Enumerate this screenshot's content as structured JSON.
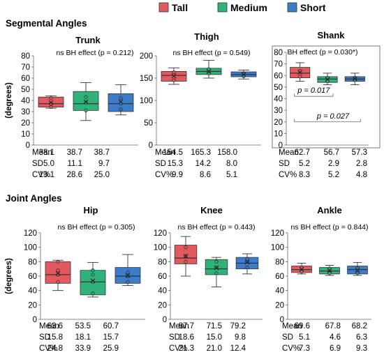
{
  "legend": [
    {
      "label": "Tall",
      "color": "#e05a5f"
    },
    {
      "label": "Medium",
      "color": "#2fb37a"
    },
    {
      "label": "Short",
      "color": "#3d7cc9"
    }
  ],
  "sections": {
    "segmental": "Segmental Angles",
    "joint": "Joint Angles"
  },
  "ylabel": "(degrees)",
  "stat_labels": [
    "Mean",
    "SD",
    "CV%"
  ],
  "chart_data": [
    {
      "type": "box",
      "title": "Trunk",
      "annotation": "ns BH effect (p = 0.212)",
      "ylim": [
        0,
        80
      ],
      "yticks": [
        0,
        10,
        20,
        30,
        40,
        50,
        60,
        70,
        80
      ],
      "series": [
        {
          "name": "Tall",
          "min": 33,
          "q1": 34,
          "median": 37,
          "q3": 43,
          "max": 44,
          "mean": 38.1,
          "points": [
            34,
            37,
            42
          ]
        },
        {
          "name": "Medium",
          "min": 22,
          "q1": 31,
          "median": 37,
          "q3": 48,
          "max": 56,
          "mean": 38.7,
          "points": [
            31,
            38,
            43
          ]
        },
        {
          "name": "Short",
          "min": 27,
          "q1": 30,
          "median": 37,
          "q3": 46,
          "max": 54,
          "mean": 38.7,
          "points": [
            32,
            37,
            42
          ]
        }
      ],
      "stats": {
        "Mean": [
          "38.1",
          "38.7",
          "38.7"
        ],
        "SD": [
          "5.0",
          "11.1",
          "9.7"
        ],
        "CV%": [
          "13.1",
          "28.6",
          "25.0"
        ]
      }
    },
    {
      "type": "box",
      "title": "Thigh",
      "annotation": "ns BH effect (p = 0.549)",
      "ylim": [
        0,
        200
      ],
      "yticks": [
        0,
        50,
        100,
        150,
        200
      ],
      "series": [
        {
          "name": "Tall",
          "min": 136,
          "q1": 143,
          "median": 156,
          "q3": 165,
          "max": 173,
          "mean": 154.5,
          "points": [
            145,
            158,
            163
          ]
        },
        {
          "name": "Medium",
          "min": 150,
          "q1": 158,
          "median": 165,
          "q3": 172,
          "max": 190,
          "mean": 165.3,
          "points": [
            160,
            165,
            170
          ]
        },
        {
          "name": "Short",
          "min": 148,
          "q1": 153,
          "median": 158,
          "q3": 164,
          "max": 168,
          "mean": 158.0,
          "points": [
            154,
            160
          ]
        }
      ],
      "stats": {
        "Mean": [
          "154.5",
          "165.3",
          "158.0"
        ],
        "SD": [
          "15.3",
          "14.2",
          "8.0"
        ],
        "CV%": [
          "9.9",
          "8.6",
          "5.1"
        ]
      }
    },
    {
      "type": "box",
      "title": "Shank",
      "annotation": "BH effect (p = 0.030*)",
      "boxed": true,
      "ylim": [
        0,
        80
      ],
      "yticks": [
        0,
        10,
        20,
        30,
        40,
        50,
        60,
        70,
        80
      ],
      "series": [
        {
          "name": "Tall",
          "min": 55,
          "q1": 58,
          "median": 62,
          "q3": 67,
          "max": 71,
          "mean": 62.7,
          "points": [
            59,
            64
          ]
        },
        {
          "name": "Medium",
          "min": 52,
          "q1": 54,
          "median": 57,
          "q3": 59,
          "max": 62,
          "mean": 56.7,
          "points": [
            55,
            58
          ]
        },
        {
          "name": "Short",
          "min": 52,
          "q1": 55,
          "median": 57,
          "q3": 59,
          "max": 62,
          "mean": 57.3,
          "points": [
            56,
            58
          ]
        }
      ],
      "brackets": [
        {
          "from": 0,
          "to": 1,
          "label": "p = 0.017",
          "level": 42
        },
        {
          "from": 0,
          "to": 2,
          "label": "p = 0.027",
          "level": 20
        }
      ],
      "stats": {
        "Mean": [
          "62.7",
          "56.7",
          "57.3"
        ],
        "SD": [
          "5.2",
          "2.9",
          "2.8"
        ],
        "CV%": [
          "8.3",
          "5.2",
          "4.8"
        ]
      }
    },
    {
      "type": "box",
      "title": "Hip",
      "annotation": "ns BH effect (p = 0.305)",
      "ylim": [
        0,
        120
      ],
      "yticks": [
        0,
        20,
        40,
        60,
        80,
        100,
        120
      ],
      "series": [
        {
          "name": "Tall",
          "min": 40,
          "q1": 50,
          "median": 62,
          "q3": 80,
          "max": 82,
          "mean": 63.6,
          "points": [
            52,
            62,
            68,
            80
          ]
        },
        {
          "name": "Medium",
          "min": 31,
          "q1": 34,
          "median": 52,
          "q3": 68,
          "max": 79,
          "mean": 53.5,
          "points": [
            36,
            52,
            62,
            68
          ]
        },
        {
          "name": "Short",
          "min": 47,
          "q1": 50,
          "median": 60,
          "q3": 72,
          "max": 90,
          "mean": 60.7,
          "points": [
            52,
            60,
            65
          ]
        }
      ],
      "stats": {
        "Mean": [
          "63.6",
          "53.5",
          "60.7"
        ],
        "SD": [
          "15.8",
          "18.1",
          "15.7"
        ],
        "CV%": [
          "24.8",
          "33.9",
          "25.9"
        ]
      }
    },
    {
      "type": "box",
      "title": "Knee",
      "annotation": "ns BH effect (p = 0.443)",
      "ylim": [
        0,
        120
      ],
      "yticks": [
        0,
        20,
        40,
        60,
        80,
        100,
        120
      ],
      "series": [
        {
          "name": "Tall",
          "min": 60,
          "q1": 77,
          "median": 85,
          "q3": 103,
          "max": 115,
          "mean": 87.7,
          "points": [
            80,
            88,
            100
          ]
        },
        {
          "name": "Medium",
          "min": 45,
          "q1": 62,
          "median": 70,
          "q3": 83,
          "max": 86,
          "mean": 71.5,
          "points": [
            64,
            72,
            80
          ]
        },
        {
          "name": "Short",
          "min": 63,
          "q1": 70,
          "median": 78,
          "q3": 86,
          "max": 91,
          "mean": 79.2,
          "points": [
            72,
            80,
            84
          ]
        }
      ],
      "stats": {
        "Mean": [
          "87.7",
          "71.5",
          "79.2"
        ],
        "SD": [
          "18.6",
          "15.0",
          "9.8"
        ],
        "CV%": [
          "21.3",
          "21.0",
          "12.4"
        ]
      }
    },
    {
      "type": "box",
      "title": "Ankle",
      "annotation": "ns BH effect (p = 0.844)",
      "ylim": [
        0,
        120
      ],
      "yticks": [
        0,
        20,
        40,
        60,
        80,
        100,
        120
      ],
      "series": [
        {
          "name": "Tall",
          "min": 63,
          "q1": 65,
          "median": 69,
          "q3": 74,
          "max": 78,
          "mean": 69.6,
          "points": [
            66,
            72
          ]
        },
        {
          "name": "Medium",
          "min": 61,
          "q1": 63,
          "median": 67,
          "q3": 72,
          "max": 75,
          "mean": 67.8,
          "points": [
            64,
            70
          ]
        },
        {
          "name": "Short",
          "min": 61,
          "q1": 63,
          "median": 69,
          "q3": 74,
          "max": 79,
          "mean": 68.2,
          "points": [
            64,
            71
          ]
        }
      ],
      "stats": {
        "Mean": [
          "69.6",
          "67.8",
          "68.2"
        ],
        "SD": [
          "5.1",
          "4.6",
          "6.3"
        ],
        "CV%": [
          "7.3",
          "6.9",
          "9.3"
        ]
      }
    }
  ]
}
